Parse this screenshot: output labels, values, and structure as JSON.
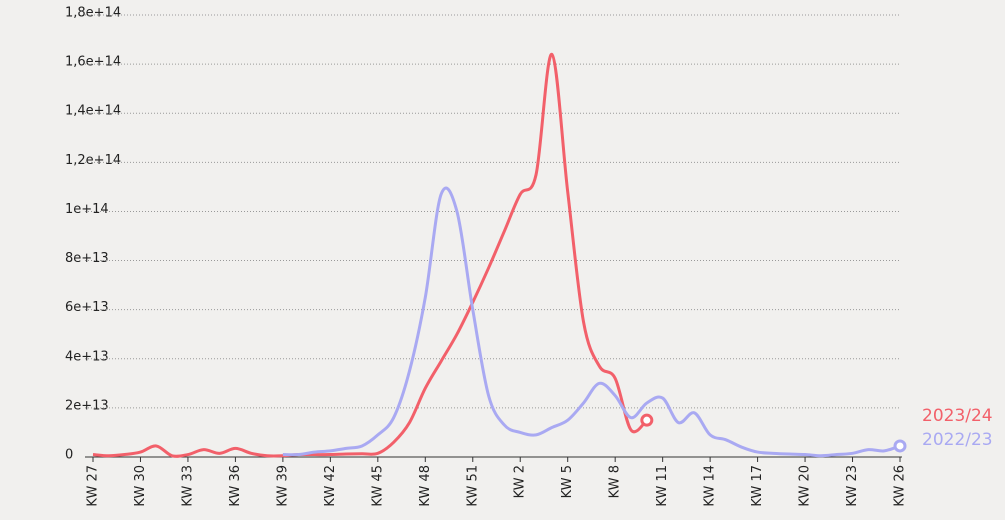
{
  "chart_data": {
    "type": "line",
    "categories": [
      "KW 27",
      null,
      null,
      "KW 30",
      null,
      null,
      "KW 33",
      null,
      null,
      "KW 36",
      null,
      null,
      "KW 39",
      null,
      null,
      "KW 42",
      null,
      null,
      "KW 45",
      null,
      null,
      "KW 48",
      null,
      null,
      "KW 51",
      null,
      null,
      "KW 2",
      null,
      null,
      "KW 5",
      null,
      null,
      "KW 8",
      null,
      null,
      "KW 11",
      null,
      null,
      "KW 14",
      null,
      null,
      "KW 17",
      null,
      null,
      "KW 20",
      null,
      null,
      "KW 23",
      null,
      null,
      "KW 26"
    ],
    "series": [
      {
        "name": "2023/24",
        "color": "#f2606a",
        "values": [
          1000000000000.0,
          500000000000.0,
          1000000000000.0,
          2000000000000.0,
          4500000000000.0,
          500000000000.0,
          1000000000000.0,
          3000000000000.0,
          1500000000000.0,
          3500000000000.0,
          1500000000000.0,
          500000000000.0,
          500000000000.0,
          1000000000000.0,
          1000000000000.0,
          1000000000000.0,
          1200000000000.0,
          1300000000000.0,
          1500000000000.0,
          6000000000000.0,
          14000000000000.0,
          28000000000000.0,
          39000000000000.0,
          50000000000000.0,
          63000000000000.0,
          77000000000000.0,
          92000000000000.0,
          107000000000000.0,
          115000000000000.0,
          164000000000000.0,
          108000000000000.0,
          55000000000000.0,
          37000000000000.0,
          32000000000000.0,
          11000000000000.0,
          15000000000000.0,
          null,
          null,
          null,
          null,
          null,
          null,
          null,
          null,
          null,
          null,
          null,
          null,
          null,
          null,
          null,
          null
        ]
      },
      {
        "name": "2022/23",
        "color": "#a9a9f2",
        "values": [
          null,
          null,
          null,
          null,
          null,
          null,
          null,
          null,
          null,
          null,
          null,
          null,
          1000000000000.0,
          1000000000000.0,
          2000000000000.0,
          2500000000000.0,
          3500000000000.0,
          4500000000000.0,
          9000000000000.0,
          16000000000000.0,
          35000000000000.0,
          65000000000000.0,
          107000000000000.0,
          100000000000000.0,
          60000000000000.0,
          25000000000000.0,
          13000000000000.0,
          10000000000000.0,
          9000000000000.0,
          12000000000000.0,
          15000000000000.0,
          22000000000000.0,
          30000000000000.0,
          25000000000000.0,
          16000000000000.0,
          22000000000000.0,
          24000000000000.0,
          14000000000000.0,
          18000000000000.0,
          9000000000000.0,
          7000000000000.0,
          4000000000000.0,
          2000000000000.0,
          1500000000000.0,
          1200000000000.0,
          1000000000000.0,
          500000000000.0,
          1000000000000.0,
          1500000000000.0,
          3000000000000.0,
          2500000000000.0,
          4500000000000.0
        ]
      }
    ],
    "ylim": [
      0,
      180000000000000.0
    ],
    "yticks": [
      0,
      {
        "value": 20000000000000.0,
        "label": "2e+13"
      },
      {
        "value": 40000000000000.0,
        "label": "4e+13"
      },
      {
        "value": 60000000000000.0,
        "label": "6e+13"
      },
      {
        "value": 80000000000000.0,
        "label": "8e+13"
      },
      {
        "value": 100000000000000.0,
        "label": "1e+14"
      },
      {
        "value": 120000000000000.0,
        "label": "1,2e+14"
      },
      {
        "value": 140000000000000.0,
        "label": "1,4e+14"
      },
      {
        "value": 160000000000000.0,
        "label": "1,6e+14"
      },
      {
        "value": 180000000000000.0,
        "label": "1,8e+14"
      }
    ],
    "grid": true
  }
}
